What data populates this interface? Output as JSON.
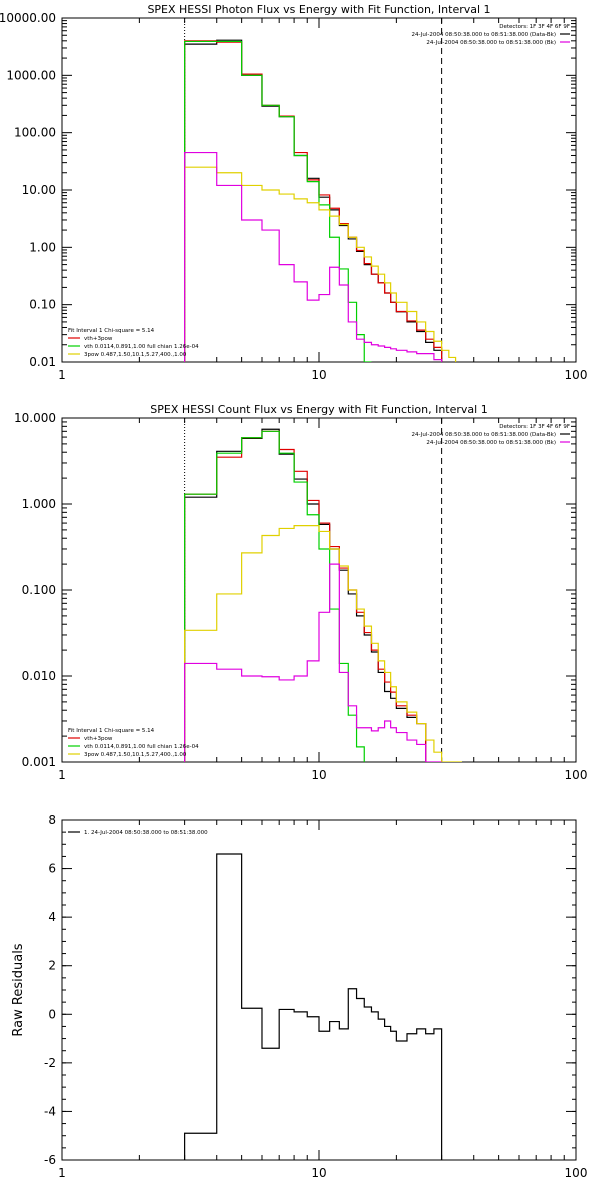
{
  "chart_data": [
    {
      "type": "line",
      "title": "SPEX HESSI Photon Flux vs Energy with Fit Function, Interval 1",
      "xscale": "log",
      "yscale": "log",
      "xlim": [
        1,
        100
      ],
      "ylim": [
        0.01,
        10000
      ],
      "xticks": [
        1,
        10,
        100
      ],
      "xtick_labels": [
        "1",
        "10",
        "100"
      ],
      "yticks": [
        0.01,
        0.1,
        1,
        10,
        100,
        1000,
        10000
      ],
      "ytick_labels": [
        "0.01",
        "0.10",
        "1.00",
        "10.00",
        "100.00",
        "1000.00",
        "10000.00"
      ],
      "vlines": [
        {
          "x": 3,
          "style": "dotted"
        },
        {
          "x": 30,
          "style": "dashed"
        }
      ],
      "legend_top_right": [
        {
          "text": "Detectors: 1F 3F 4F 6F 9F",
          "color": null
        },
        {
          "text": "24-Jul-2004 08:50:38.000 to 08:51:38.000 (Data-Bk)",
          "color": "#000000"
        },
        {
          "text": "24-Jul-2004 08:50:38.000 to 08:51:38.000 (Bk)",
          "color": "#e000e0"
        }
      ],
      "legend_bottom_left": [
        {
          "text": "Fit Interval 1   Chi-square = 5.14",
          "color": null
        },
        {
          "text": "vth+3pow",
          "color": "#e00000"
        },
        {
          "text": "vth 0.0114,0.891,1.00  full chian 1.26e-04",
          "color": "#00d000"
        },
        {
          "text": "3pow 0.487,1.50,10.1,5.27,400.,1.00",
          "color": "#e0d000"
        }
      ],
      "edges": [
        3,
        4,
        5,
        6,
        7,
        8,
        9,
        10,
        11,
        12,
        13,
        14,
        15,
        16,
        17,
        18,
        19,
        20,
        22,
        24,
        26,
        28,
        30,
        32,
        34
      ],
      "series": [
        {
          "color": "#000000",
          "values": [
            3500,
            4100,
            1000,
            290,
            190,
            40,
            16,
            7.5,
            4.5,
            2.4,
            1.4,
            0.85,
            0.5,
            0.34,
            0.24,
            0.16,
            0.11,
            0.075,
            0.05,
            0.034,
            0.022,
            0.016,
            null,
            null
          ]
        },
        {
          "color": "#e00000",
          "values": [
            4000,
            3800,
            1050,
            300,
            195,
            45,
            15,
            8.2,
            4.8,
            2.6,
            1.5,
            0.88,
            0.52,
            0.34,
            0.24,
            0.16,
            0.11,
            0.076,
            0.052,
            0.036,
            0.025,
            0.018,
            null,
            null
          ]
        },
        {
          "color": "#00d000",
          "values": [
            3900,
            3900,
            1000,
            300,
            190,
            40,
            14,
            5.5,
            1.5,
            0.42,
            0.11,
            0.03,
            0.01,
            null,
            null,
            null,
            null,
            null,
            null,
            null,
            null,
            null,
            null,
            null
          ]
        },
        {
          "color": "#e0d000",
          "values": [
            25,
            20,
            12,
            10,
            8.5,
            7,
            6,
            4.5,
            3.5,
            2.5,
            1.5,
            1.0,
            0.68,
            0.47,
            0.34,
            0.24,
            0.16,
            0.11,
            0.076,
            0.05,
            0.034,
            0.023,
            0.016,
            0.012
          ]
        },
        {
          "color": "#e000e0",
          "values": [
            45,
            12,
            3,
            2,
            0.5,
            0.25,
            0.12,
            0.15,
            0.45,
            0.22,
            0.05,
            0.025,
            0.022,
            0.02,
            0.019,
            0.018,
            0.017,
            0.016,
            0.015,
            0.014,
            0.014,
            0.011,
            null,
            null
          ]
        }
      ]
    },
    {
      "type": "line",
      "title": "SPEX HESSI Count Flux vs Energy with Fit Function, Interval 1",
      "xscale": "log",
      "yscale": "log",
      "xlim": [
        1,
        100
      ],
      "ylim": [
        0.001,
        10
      ],
      "xticks": [
        1,
        10,
        100
      ],
      "xtick_labels": [
        "1",
        "10",
        "100"
      ],
      "yticks": [
        0.001,
        0.01,
        0.1,
        1,
        10
      ],
      "ytick_labels": [
        "0.001",
        "0.010",
        "0.100",
        "1.000",
        "10.000"
      ],
      "vlines": [
        {
          "x": 3,
          "style": "dotted"
        },
        {
          "x": 30,
          "style": "dashed"
        }
      ],
      "legend_top_right": [
        {
          "text": "Detectors: 1F 3F 4F 6F 9F",
          "color": null
        },
        {
          "text": "24-Jul-2004 08:50:38.000 to 08:51:38.000 (Data-Bk)",
          "color": "#000000"
        },
        {
          "text": "24-Jul-2004 08:50:38.000 to 08:51:38.000 (Bk)",
          "color": "#e000e0"
        }
      ],
      "legend_bottom_left": [
        {
          "text": "Fit Interval 1   Chi-square = 5.14",
          "color": null
        },
        {
          "text": "vth+3pow",
          "color": "#e00000"
        },
        {
          "text": "vth 0.0114,0.891,1.00  full chian 1.26e-04",
          "color": "#00d000"
        },
        {
          "text": "3pow 0.487,1.50,10.1,5.27,400.,1.00",
          "color": "#e0d000"
        }
      ],
      "edges": [
        3,
        4,
        5,
        6,
        7,
        8,
        9,
        10,
        11,
        12,
        13,
        14,
        15,
        16,
        17,
        18,
        19,
        20,
        22,
        24,
        26,
        28,
        30,
        32,
        34,
        36
      ],
      "series": [
        {
          "color": "#000000",
          "values": [
            1.2,
            4.1,
            5.8,
            7.4,
            3.8,
            1.95,
            1.0,
            0.58,
            0.3,
            0.17,
            0.09,
            0.05,
            0.03,
            0.019,
            0.011,
            0.0066,
            0.0055,
            0.0042,
            0.0033,
            0.0028,
            null,
            null,
            null,
            null,
            null
          ]
        },
        {
          "color": "#e00000",
          "values": [
            1.3,
            3.5,
            5.9,
            7.0,
            4.3,
            2.4,
            1.1,
            0.6,
            0.32,
            0.18,
            0.1,
            0.055,
            0.032,
            0.02,
            0.012,
            0.0085,
            0.0065,
            0.0045,
            0.0035,
            0.0028,
            null,
            null,
            null,
            null,
            null
          ]
        },
        {
          "color": "#00d000",
          "values": [
            1.3,
            3.9,
            5.9,
            7.0,
            3.9,
            1.8,
            0.75,
            0.3,
            0.06,
            0.014,
            0.0035,
            0.0015,
            null,
            null,
            null,
            null,
            null,
            null,
            null,
            null,
            null,
            null,
            null,
            null,
            null
          ]
        },
        {
          "color": "#e0d000",
          "values": [
            0.034,
            0.09,
            0.27,
            0.43,
            0.52,
            0.56,
            0.56,
            0.48,
            0.3,
            0.19,
            0.1,
            0.06,
            0.038,
            0.024,
            0.015,
            0.011,
            0.0075,
            0.005,
            0.0038,
            0.0028,
            0.0018,
            0.0013,
            0.001,
            0.001,
            0.0009
          ]
        },
        {
          "color": "#e000e0",
          "values": [
            0.014,
            0.012,
            0.01,
            0.0098,
            0.009,
            0.01,
            0.015,
            0.055,
            0.2,
            0.011,
            0.0045,
            0.0025,
            0.0025,
            0.0023,
            0.0025,
            0.003,
            0.0025,
            0.0022,
            0.0018,
            0.0016,
            0.001,
            0.0009,
            null,
            null,
            null
          ]
        }
      ]
    },
    {
      "type": "line",
      "title": "",
      "ylabel": "Raw Residuals",
      "xscale": "log",
      "yscale": "linear",
      "xlim": [
        1,
        100
      ],
      "ylim": [
        -6,
        8
      ],
      "xticks": [
        1,
        10,
        100
      ],
      "xtick_labels": [
        "1",
        "10",
        "100"
      ],
      "yticks": [
        -6,
        -4,
        -2,
        0,
        2,
        4,
        6,
        8
      ],
      "ytick_labels": [
        "-6",
        "-4",
        "-2",
        "0",
        "2",
        "4",
        "6",
        "8"
      ],
      "legend_top_left": [
        {
          "text": "1. 24-Jul-2004 08:50:38.000 to 08:51:38.000",
          "color": "#000000"
        }
      ],
      "edges": [
        3,
        4,
        5,
        6,
        7,
        8,
        9,
        10,
        11,
        12,
        13,
        14,
        15,
        16,
        17,
        18,
        19,
        20,
        22,
        24,
        26,
        28,
        30
      ],
      "series": [
        {
          "color": "#000000",
          "values": [
            -4.9,
            6.6,
            0.25,
            -1.4,
            0.2,
            0.1,
            -0.1,
            -0.7,
            -0.3,
            -0.6,
            1.05,
            0.65,
            0.3,
            0.1,
            -0.2,
            -0.5,
            -0.7,
            -1.1,
            -0.8,
            -0.6,
            -0.8,
            -0.6
          ]
        }
      ]
    }
  ]
}
